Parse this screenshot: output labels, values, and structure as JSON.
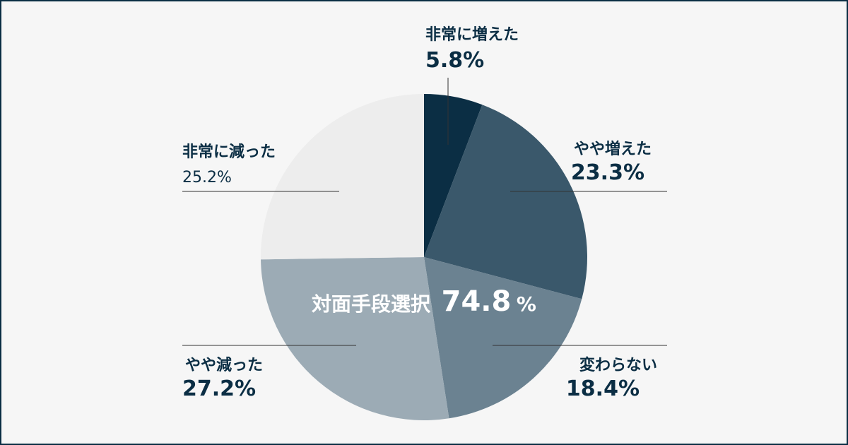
{
  "chart_data": {
    "type": "pie",
    "slices": [
      {
        "label": "非常に増えた",
        "value": 5.8,
        "display": "5.8%",
        "color": "#0b2e44"
      },
      {
        "label": "やや増えた",
        "value": 23.3,
        "display": "23.3%",
        "color": "#3a586b"
      },
      {
        "label": "変わらない",
        "value": 18.4,
        "display": "18.4%",
        "color": "#6b8291"
      },
      {
        "label": "やや減った",
        "value": 27.2,
        "display": "27.2%",
        "color": "#9cabb5"
      },
      {
        "label": "非常に減った",
        "value": 25.2,
        "display": "25.2%",
        "color": "#ededed"
      }
    ],
    "center_annotation": {
      "label": "対面手段選択",
      "value": "74.8",
      "unit": "%"
    },
    "start_angle": "top",
    "direction": "clockwise"
  }
}
